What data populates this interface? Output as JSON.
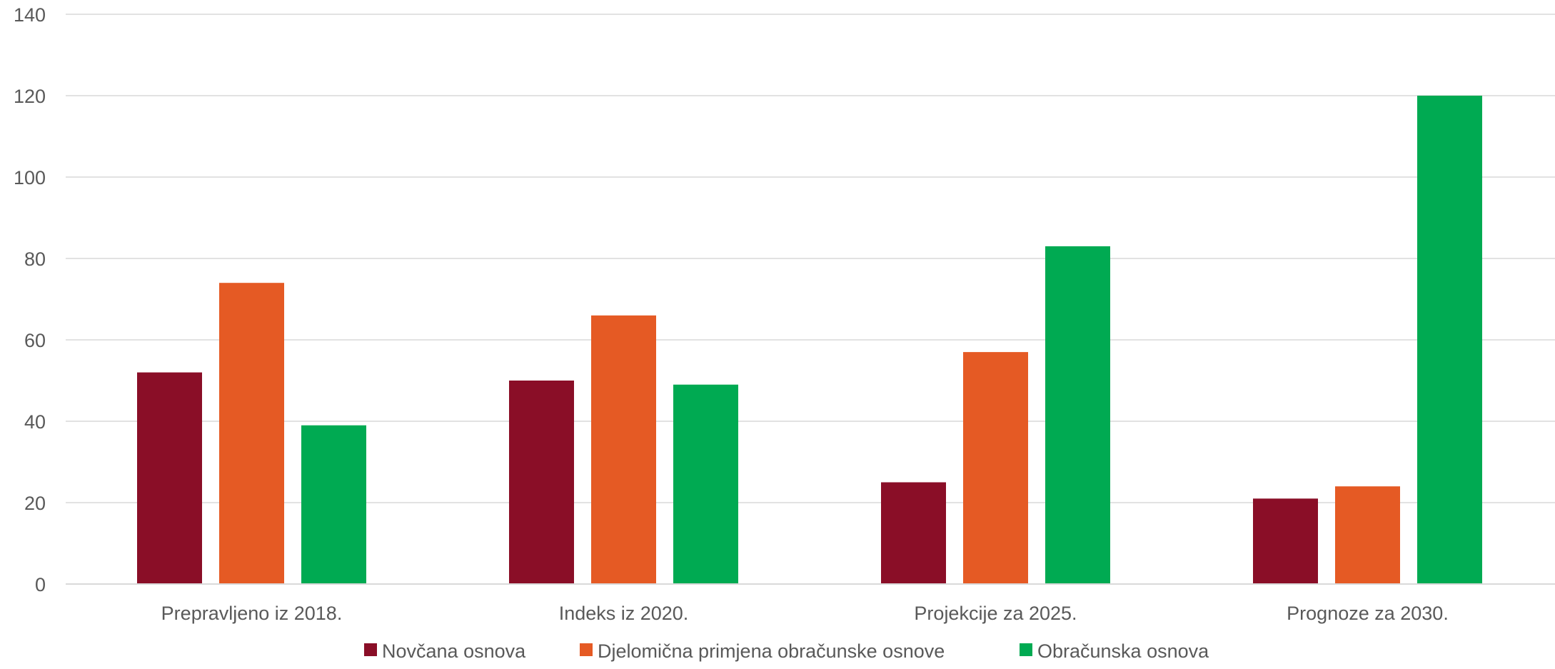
{
  "chart_data": {
    "type": "bar",
    "title": "",
    "xlabel": "",
    "ylabel": "",
    "categories": [
      "Prepravljeno iz 2018.",
      "Indeks iz 2020.",
      "Projekcije za 2025.",
      "Prognoze za 2030."
    ],
    "series": [
      {
        "name": "Novčana osnova",
        "color": "#8a0e27",
        "values": [
          52,
          50,
          25,
          21
        ]
      },
      {
        "name": "Djelomična primjena obračunske osnove",
        "color": "#e55a24",
        "values": [
          74,
          66,
          57,
          24
        ]
      },
      {
        "name": "Obračunska osnova",
        "color": "#00aa52",
        "values": [
          39,
          49,
          83,
          120
        ]
      }
    ],
    "ylim": [
      0,
      140
    ],
    "yticks": [
      0,
      20,
      40,
      60,
      80,
      100,
      120,
      140
    ],
    "grid": true,
    "legend": "bottom-center"
  }
}
